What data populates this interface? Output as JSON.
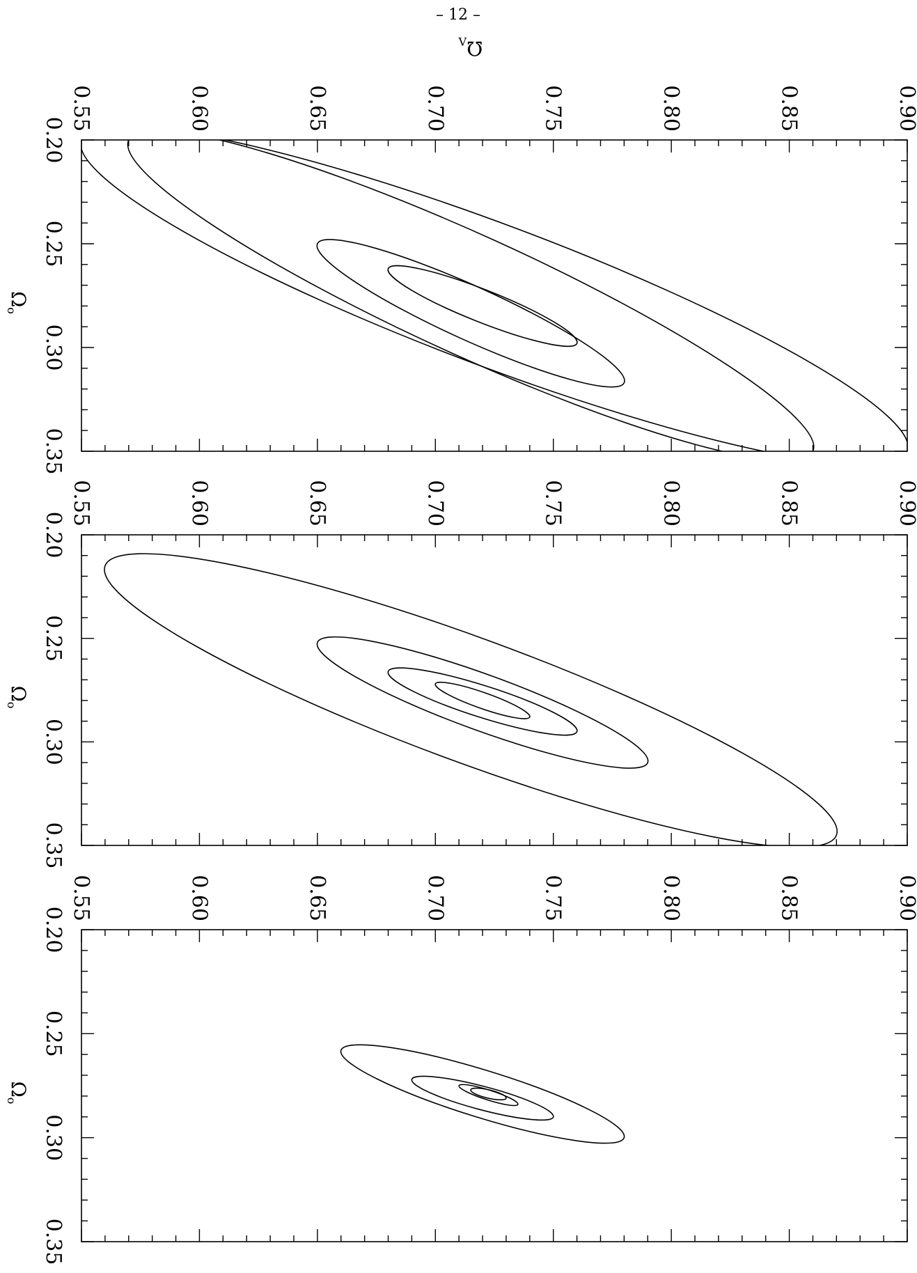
{
  "page_number": "– 12 –",
  "chart_data": [
    {
      "type": "contour",
      "panel": "top",
      "xlabel": "Ω₀",
      "ylabel": "Ω_Λ",
      "xlim": [
        0.2,
        0.35
      ],
      "ylim": [
        0.55,
        0.9
      ],
      "x_ticks": [
        "0.20",
        "0.25",
        "0.30",
        "0.35"
      ],
      "y_ticks": [
        "0.55",
        "0.60",
        "0.65",
        "0.70",
        "0.75",
        "0.80",
        "0.85",
        "0.90"
      ],
      "contours": [
        {
          "center": [
            0.28,
            0.72
          ],
          "span_x": [
            0.262,
            0.298
          ],
          "span_y": [
            0.68,
            0.76
          ]
        },
        {
          "center": [
            0.283,
            0.715
          ],
          "span_x": [
            0.25,
            0.317
          ],
          "span_y": [
            0.65,
            0.78
          ]
        },
        {
          "center": [
            0.28,
            0.72
          ],
          "span_x": [
            0.2,
            0.35
          ],
          "span_y": [
            0.57,
            0.86
          ]
        },
        {
          "center": [
            0.28,
            0.72
          ],
          "span_x": [
            0.2,
            0.35
          ],
          "span_y": [
            0.55,
            0.9
          ]
        }
      ]
    },
    {
      "type": "contour",
      "panel": "middle",
      "xlabel": "Ω₀",
      "ylabel": "Ω_Λ",
      "xlim": [
        0.2,
        0.35
      ],
      "ylim": [
        0.55,
        0.9
      ],
      "x_ticks": [
        "0.20",
        "0.25",
        "0.30",
        "0.35"
      ],
      "y_ticks": [
        "0.55",
        "0.60",
        "0.65",
        "0.70",
        "0.75",
        "0.80",
        "0.85",
        "0.90"
      ],
      "contours": [
        {
          "center": [
            0.28,
            0.72
          ],
          "span_x": [
            0.272,
            0.288
          ],
          "span_y": [
            0.7,
            0.74
          ]
        },
        {
          "center": [
            0.28,
            0.72
          ],
          "span_x": [
            0.266,
            0.295
          ],
          "span_y": [
            0.68,
            0.76
          ]
        },
        {
          "center": [
            0.28,
            0.72
          ],
          "span_x": [
            0.252,
            0.31
          ],
          "span_y": [
            0.65,
            0.79
          ]
        },
        {
          "center": [
            0.28,
            0.72
          ],
          "span_x": [
            0.215,
            0.345
          ],
          "span_y": [
            0.56,
            0.87
          ]
        }
      ]
    },
    {
      "type": "contour",
      "panel": "bottom",
      "xlabel": "Ω₀",
      "ylabel": "Ω_Λ",
      "xlim": [
        0.2,
        0.35
      ],
      "ylim": [
        0.55,
        0.9
      ],
      "x_ticks": [
        "0.20",
        "0.25",
        "0.30",
        "0.35"
      ],
      "y_ticks": [
        "0.55",
        "0.60",
        "0.65",
        "0.70",
        "0.75",
        "0.80",
        "0.85",
        "0.90"
      ],
      "contours": [
        {
          "center": [
            0.28,
            0.72
          ],
          "span_x": [
            0.277,
            0.281
          ],
          "span_y": [
            0.715,
            0.73
          ]
        },
        {
          "center": [
            0.28,
            0.72
          ],
          "span_x": [
            0.275,
            0.284
          ],
          "span_y": [
            0.71,
            0.735
          ]
        },
        {
          "center": [
            0.28,
            0.72
          ],
          "span_x": [
            0.272,
            0.29
          ],
          "span_y": [
            0.69,
            0.75
          ]
        },
        {
          "center": [
            0.28,
            0.72
          ],
          "span_x": [
            0.258,
            0.3
          ],
          "span_y": [
            0.66,
            0.78
          ]
        }
      ]
    }
  ]
}
